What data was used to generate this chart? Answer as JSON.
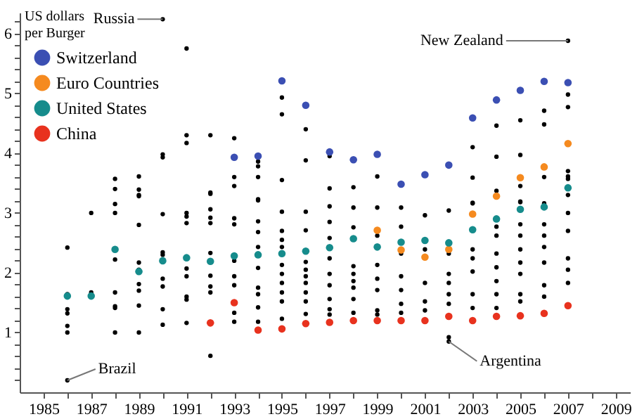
{
  "chart_data": {
    "type": "scatter",
    "ylabel": "US dollars per Burger",
    "marker": "circle",
    "legend": "top left",
    "xlim": [
      1984,
      2009.6
    ],
    "ylim": [
      0,
      6.35
    ],
    "xticks": [
      1985,
      {
        "value": 1986,
        "label": null
      },
      1987,
      {
        "value": 1988,
        "label": null
      },
      1989,
      {
        "value": 1990,
        "label": null
      },
      1991,
      {
        "value": 1992,
        "label": null
      },
      1993,
      {
        "value": 1994,
        "label": null
      },
      1995,
      {
        "value": 1996,
        "label": null
      },
      1997,
      {
        "value": 1998,
        "label": null
      },
      1999,
      {
        "value": 2000,
        "label": null
      },
      2001,
      {
        "value": 2002,
        "label": null
      },
      2003,
      {
        "value": 2004,
        "label": null
      },
      2005,
      {
        "value": 2006,
        "label": null
      },
      2007,
      {
        "value": 2008,
        "label": null
      },
      2009
    ],
    "yticks": [
      {
        "value": 0.2,
        "label": null
      },
      {
        "value": 0.4,
        "label": null
      },
      {
        "value": 0.6,
        "label": null
      },
      {
        "value": 0.8,
        "label": null
      },
      1,
      {
        "value": 1.2,
        "label": null
      },
      {
        "value": 1.4,
        "label": null
      },
      {
        "value": 1.6,
        "label": null
      },
      {
        "value": 1.8,
        "label": null
      },
      2,
      {
        "value": 2.2,
        "label": null
      },
      {
        "value": 2.4,
        "label": null
      },
      {
        "value": 2.6,
        "label": null
      },
      {
        "value": 2.8,
        "label": null
      },
      3,
      {
        "value": 3.2,
        "label": null
      },
      {
        "value": 3.4,
        "label": null
      },
      {
        "value": 3.6,
        "label": null
      },
      {
        "value": 3.8,
        "label": null
      },
      4,
      {
        "value": 4.2,
        "label": null
      },
      {
        "value": 4.4,
        "label": null
      },
      {
        "value": 4.6,
        "label": null
      },
      {
        "value": 4.8,
        "label": null
      },
      5,
      {
        "value": 5.2,
        "label": null
      },
      {
        "value": 5.4,
        "label": null
      },
      {
        "value": 5.6,
        "label": null
      },
      {
        "value": 5.8,
        "label": null
      },
      6,
      {
        "value": 6.2,
        "label": null
      }
    ],
    "series": [
      {
        "color": "#000000",
        "x": [
          1986,
          1986,
          1986,
          1986,
          1986,
          1986,
          1986,
          1987,
          1987,
          1988,
          1988,
          1988,
          1988,
          1988,
          1988,
          1988,
          1988,
          1988,
          1989,
          1989,
          1989,
          1989,
          1989,
          1989,
          1989,
          1989,
          1989,
          1989,
          1989,
          1990,
          1990,
          1990,
          1990,
          1990,
          1990,
          1990,
          1990,
          1990,
          1990,
          1991,
          1991,
          1991,
          1991,
          1991,
          1991,
          1991,
          1991,
          1991,
          1991,
          1991,
          1992,
          1992,
          1992,
          1992,
          1992,
          1992,
          1992,
          1992,
          1992,
          1992,
          1992,
          1993,
          1993,
          1993,
          1993,
          1993,
          1993,
          1993,
          1993,
          1993,
          1993,
          1994,
          1994,
          1994,
          1994,
          1994,
          1994,
          1994,
          1994,
          1994,
          1994,
          1994,
          1994,
          1994,
          1995,
          1995,
          1995,
          1995,
          1995,
          1995,
          1995,
          1995,
          1995,
          1995,
          1995,
          1995,
          1995,
          1996,
          1996,
          1996,
          1996,
          1996,
          1996,
          1996,
          1996,
          1996,
          1996,
          1996,
          1997,
          1997,
          1997,
          1997,
          1997,
          1997,
          1997,
          1997,
          1997,
          1997,
          1997,
          1998,
          1998,
          1998,
          1998,
          1998,
          1998,
          1998,
          1998,
          1998,
          1999,
          1999,
          1999,
          1999,
          1999,
          1999,
          1999,
          1999,
          2000,
          2000,
          2000,
          2000,
          2000,
          2000,
          2000,
          2001,
          2001,
          2001,
          2001,
          2001,
          2002,
          2002,
          2002,
          2002,
          2002,
          2002,
          2002,
          2002,
          2003,
          2003,
          2003,
          2003,
          2003,
          2003,
          2003,
          2003,
          2003,
          2004,
          2004,
          2004,
          2004,
          2004,
          2004,
          2004,
          2004,
          2004,
          2004,
          2005,
          2005,
          2005,
          2005,
          2005,
          2005,
          2005,
          2005,
          2005,
          2005,
          2005,
          2005,
          2006,
          2006,
          2006,
          2006,
          2006,
          2006,
          2006,
          2006,
          2006,
          2006,
          2007,
          2007,
          2007,
          2007,
          2007,
          2007,
          2007,
          2007,
          2007,
          2007,
          2007,
          2007
        ],
        "values": [
          2.42,
          1.64,
          1.39,
          1.32,
          1.11,
          1.0,
          0.2,
          3.0,
          1.67,
          3.57,
          3.4,
          3.15,
          3.0,
          2.22,
          1.67,
          1.44,
          1.41,
          1.0,
          3.61,
          3.39,
          3.28,
          3.3,
          2.8,
          2.17,
          2.05,
          1.81,
          1.7,
          1.45,
          1.0,
          6.24,
          3.98,
          3.93,
          2.98,
          2.34,
          2.3,
          1.9,
          1.77,
          1.39,
          1.13,
          5.75,
          4.3,
          4.17,
          3.0,
          2.94,
          2.83,
          2.07,
          1.94,
          1.6,
          1.55,
          1.16,
          4.3,
          3.32,
          3.06,
          2.92,
          2.83,
          2.33,
          1.95,
          1.77,
          1.67,
          0.61,
          3.34,
          4.25,
          3.6,
          3.45,
          2.91,
          2.81,
          2.2,
          1.94,
          1.79,
          1.33,
          1.18,
          3.86,
          3.78,
          3.6,
          3.21,
          3.23,
          2.86,
          2.68,
          2.43,
          2.08,
          1.75,
          1.64,
          1.42,
          1.18,
          4.93,
          4.65,
          3.55,
          3.02,
          2.7,
          2.55,
          2.43,
          2.13,
          1.98,
          1.83,
          1.67,
          1.52,
          1.23,
          4.4,
          3.88,
          3.02,
          2.71,
          2.18,
          2.05,
          1.94,
          1.83,
          1.67,
          1.52,
          1.31,
          3.95,
          3.41,
          3.11,
          2.85,
          2.58,
          2.24,
          1.98,
          1.79,
          1.56,
          1.39,
          1.3,
          3.43,
          3.09,
          2.76,
          2.11,
          1.98,
          1.86,
          1.75,
          1.56,
          1.33,
          3.61,
          3.09,
          2.62,
          2.13,
          1.9,
          1.71,
          1.37,
          1.3,
          3.09,
          2.77,
          2.32,
          1.94,
          1.71,
          1.48,
          1.33,
          2.96,
          2.39,
          1.83,
          1.52,
          1.37,
          3.04,
          2.32,
          1.98,
          1.83,
          1.64,
          1.48,
          0.92,
          0.85,
          4.1,
          3.59,
          3.16,
          2.39,
          2.24,
          2.02,
          1.64,
          1.41,
          3.17,
          4.46,
          3.94,
          3.37,
          2.77,
          2.62,
          2.32,
          2.09,
          1.86,
          1.64,
          1.41,
          4.55,
          3.97,
          3.45,
          3.18,
          3.19,
          2.81,
          2.62,
          2.39,
          2.17,
          1.98,
          1.64,
          1.52,
          4.71,
          4.48,
          3.6,
          3.16,
          2.81,
          2.62,
          2.43,
          2.17,
          1.79,
          1.6,
          5.88,
          4.98,
          4.77,
          3.7,
          3.61,
          3.57,
          3.3,
          3.0,
          2.7,
          2.24,
          2.05,
          1.83
        ]
      },
      {
        "name": "Switzerland",
        "color": "#3b4fb3",
        "x": [
          1993,
          1994,
          1995,
          1996,
          1997,
          1998,
          1999,
          2000,
          2001,
          2002,
          2003,
          2004,
          2005,
          2006,
          2007
        ],
        "values": [
          3.93,
          3.95,
          5.21,
          4.8,
          4.02,
          3.89,
          3.98,
          3.48,
          3.64,
          3.8,
          4.59,
          4.89,
          5.05,
          5.2,
          5.18
        ]
      },
      {
        "name": "Euro Countries",
        "color": "#f58a1f",
        "x": [
          1999,
          2000,
          2001,
          2002,
          2003,
          2004,
          2005,
          2006,
          2007
        ],
        "values": [
          2.71,
          2.38,
          2.26,
          2.39,
          2.98,
          3.28,
          3.59,
          3.77,
          4.16
        ]
      },
      {
        "name": "United States",
        "color": "#168c8c",
        "x": [
          1986,
          1987,
          1988,
          1989,
          1990,
          1991,
          1992,
          1993,
          1994,
          1995,
          1996,
          1997,
          1998,
          1999,
          2000,
          2001,
          2002,
          2003,
          2004,
          2005,
          2006,
          2007
        ],
        "values": [
          1.61,
          1.61,
          2.39,
          2.02,
          2.2,
          2.25,
          2.19,
          2.28,
          2.3,
          2.32,
          2.36,
          2.42,
          2.57,
          2.43,
          2.51,
          2.54,
          2.5,
          2.72,
          2.9,
          3.06,
          3.1,
          3.42
        ]
      },
      {
        "name": "China",
        "color": "#e8321e",
        "x": [
          1992,
          1993,
          1994,
          1995,
          1996,
          1997,
          1998,
          1999,
          2000,
          2001,
          2002,
          2003,
          2004,
          2005,
          2006,
          2007
        ],
        "values": [
          1.16,
          1.5,
          1.04,
          1.06,
          1.15,
          1.17,
          1.2,
          1.2,
          1.2,
          1.2,
          1.27,
          1.2,
          1.27,
          1.28,
          1.32,
          1.45
        ]
      }
    ],
    "annotations": [
      {
        "text": "Russia",
        "x": 1990,
        "y": 6.24
      },
      {
        "text": "New Zealand",
        "x": 2007,
        "y": 5.88
      },
      {
        "text": "Brazil",
        "x": 1986,
        "y": 0.2
      },
      {
        "text": "Argentina",
        "x": 2002,
        "y": 0.85
      }
    ]
  }
}
